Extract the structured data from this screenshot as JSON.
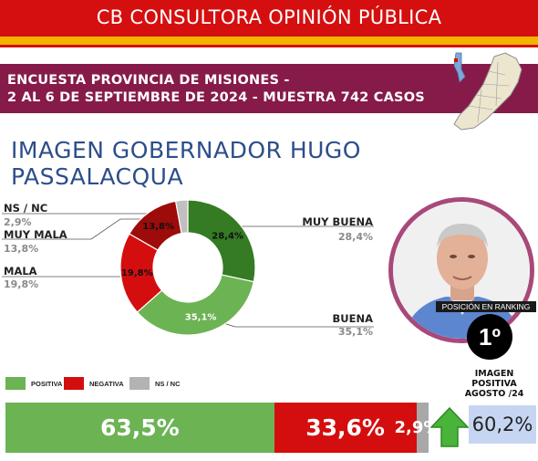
{
  "header": {
    "consultora": "CB CONSULTORA OPINIÓN PÚBLICA",
    "survey_line1": "ENCUESTA PROVINCIA DE MISIONES -",
    "survey_line2": "2 AL 6 DE SEPTIEMBRE DE 2024 - MUESTRA 742 CASOS",
    "title": "IMAGEN GOBERNADOR HUGO PASSALACQUA"
  },
  "colors": {
    "muy_buena": "#347b24",
    "buena": "#6cb354",
    "mala": "#d40e0e",
    "muy_mala": "#9e0b0b",
    "ns_nc": "#c0c0c0",
    "positiva": "#6cb354",
    "negativa": "#d40e0e",
    "ns_nc_bar": "#a8a8a8"
  },
  "chart_data": [
    {
      "type": "pie",
      "categories": [
        "MUY BUENA",
        "BUENA",
        "MALA",
        "MUY MALA",
        "NS / NC"
      ],
      "values": [
        28.4,
        35.1,
        19.8,
        13.8,
        2.9
      ],
      "value_labels": [
        "28,4%",
        "35,1%",
        "19,8%",
        "13,8%",
        "2,9%"
      ]
    },
    {
      "type": "bar",
      "stacked": true,
      "orientation": "horizontal",
      "categories": [
        "POSITIVA",
        "NEGATIVA",
        "NS / NC"
      ],
      "values": [
        63.5,
        33.6,
        2.9
      ],
      "value_labels": [
        "63,5%",
        "33,6%",
        "2,9%"
      ]
    }
  ],
  "ranking": {
    "label": "POSICIÓN EN RANKING",
    "value": "1º"
  },
  "august": {
    "label_line1": "IMAGEN",
    "label_line2": "POSITIVA",
    "label_line3": "AGOSTO /24",
    "value": "60,2%"
  }
}
